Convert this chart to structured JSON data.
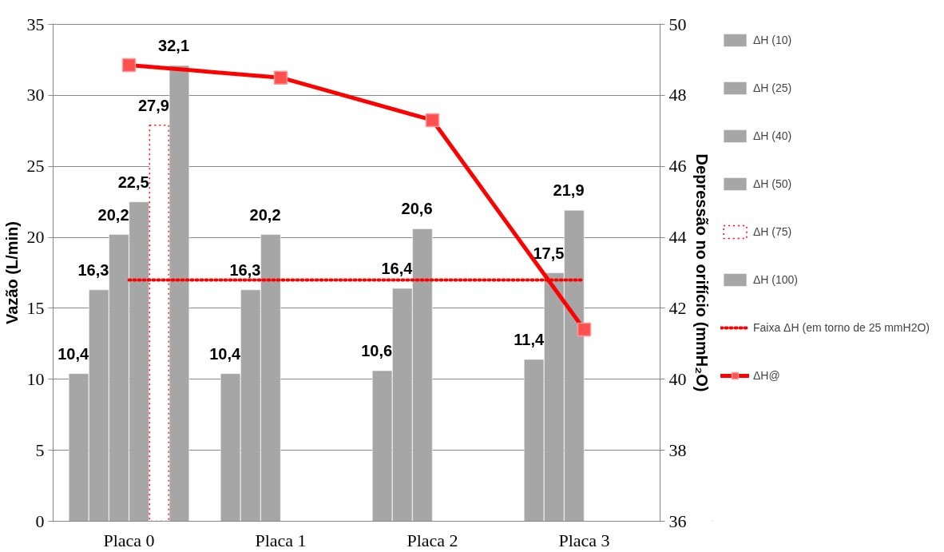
{
  "chart_data": {
    "type": "bar",
    "categories": [
      "Placa 0",
      "Placa 1",
      "Placa 2",
      "Placa 3"
    ],
    "ylabel": "Vazão (L/min)",
    "y2label": "Depressão no orifício (mmH₂O)",
    "ylim": [
      0,
      35
    ],
    "yticks": [
      0,
      5,
      10,
      15,
      20,
      25,
      30,
      35
    ],
    "y2lim": [
      36,
      50
    ],
    "y2ticks": [
      36,
      38,
      40,
      42,
      44,
      46,
      48,
      50
    ],
    "grid": "y",
    "legend": "right",
    "series": [
      {
        "name": "ΔH (10)",
        "color": "#a6a6a6",
        "values": [
          10.4,
          10.4,
          10.6,
          11.4
        ],
        "value_labels": [
          "10,4",
          "10,4",
          "10,6",
          "11,4"
        ]
      },
      {
        "name": "ΔH (25)",
        "color": "#a6a6a6",
        "values": [
          16.3,
          16.3,
          16.4,
          17.5
        ],
        "value_labels": [
          "16,3",
          "16,3",
          "16,4",
          "17,5"
        ]
      },
      {
        "name": "ΔH (40)",
        "color": "#a6a6a6",
        "values": [
          20.2,
          20.2,
          20.6,
          21.9
        ],
        "value_labels": [
          "20,2",
          "20,2",
          "20,6",
          "21,9"
        ]
      },
      {
        "name": "ΔH (50)",
        "color": "#a6a6a6",
        "values": [
          22.5,
          null,
          null,
          null
        ],
        "value_labels": [
          "22,5",
          null,
          null,
          null
        ]
      },
      {
        "name": "ΔH (75)",
        "color": "#ff0000",
        "line_style": "dotted",
        "values": [
          27.9,
          null,
          null,
          null
        ],
        "value_labels": [
          "27,9",
          null,
          null,
          null
        ]
      },
      {
        "name": "ΔH (100)",
        "color": "#a6a6a6",
        "values": [
          32.1,
          null,
          null,
          null
        ],
        "value_labels": [
          "32,1",
          null,
          null,
          null
        ]
      },
      {
        "name": "Faixa ΔH (em torno de 25 mmH2O)",
        "type": "line",
        "color": "#ff0000",
        "line_style": "dotted",
        "marker": "none",
        "values": [
          17,
          17,
          17,
          17
        ]
      },
      {
        "name": "ΔH@",
        "type": "line",
        "axis": "y2",
        "color": "#ff0000",
        "line_style": "solid",
        "marker": "square",
        "values": [
          48.85,
          48.5,
          47.3,
          41.4
        ]
      }
    ]
  }
}
